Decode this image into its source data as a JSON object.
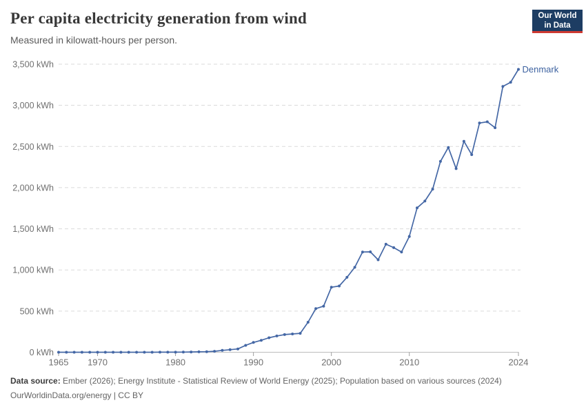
{
  "header": {
    "title": "Per capita electricity generation from wind",
    "subtitle": "Measured in kilowatt-hours per person.",
    "logo": {
      "line1": "Our World",
      "line2": "in Data"
    }
  },
  "colors": {
    "series_line": "#4467a5",
    "series_label": "#3d62a0",
    "logo_bg": "#1d3d63",
    "logo_bar": "#cf3a31",
    "gridline": "#dadada",
    "axis_line": "#bcbcbc",
    "tick_mark": "#9e9e9e",
    "tick_label": "#6f6f6f"
  },
  "chart_data": {
    "type": "line",
    "title": "Per capita electricity generation from wind",
    "subtitle": "Measured in kilowatt-hours per person.",
    "xlabel": "",
    "ylabel": "kilowatt-hours per person",
    "xlim": [
      1965,
      2024
    ],
    "ylim": [
      0,
      3500
    ],
    "grid": "horizontal-dashed",
    "legend_position": "end-of-line-label",
    "x_ticks": [
      {
        "value": 1965,
        "label": "1965"
      },
      {
        "value": 1970,
        "label": "1970"
      },
      {
        "value": 1980,
        "label": "1980"
      },
      {
        "value": 1990,
        "label": "1990"
      },
      {
        "value": 2000,
        "label": "2000"
      },
      {
        "value": 2010,
        "label": "2010"
      },
      {
        "value": 2024,
        "label": "2024"
      }
    ],
    "y_ticks": [
      {
        "value": 0,
        "label": "0 kWh"
      },
      {
        "value": 500,
        "label": "500 kWh"
      },
      {
        "value": 1000,
        "label": "1,000 kWh"
      },
      {
        "value": 1500,
        "label": "1,500 kWh"
      },
      {
        "value": 2000,
        "label": "2,000 kWh"
      },
      {
        "value": 2500,
        "label": "2,500 kWh"
      },
      {
        "value": 3000,
        "label": "3,000 kWh"
      },
      {
        "value": 3500,
        "label": "3,500 kWh"
      }
    ],
    "series": [
      {
        "name": "Denmark",
        "points": [
          [
            1965,
            0
          ],
          [
            1966,
            0
          ],
          [
            1967,
            0
          ],
          [
            1968,
            0
          ],
          [
            1969,
            0
          ],
          [
            1970,
            0
          ],
          [
            1971,
            0
          ],
          [
            1972,
            0
          ],
          [
            1973,
            0
          ],
          [
            1974,
            0
          ],
          [
            1975,
            0
          ],
          [
            1976,
            0
          ],
          [
            1977,
            0
          ],
          [
            1978,
            1
          ],
          [
            1979,
            1
          ],
          [
            1980,
            1
          ],
          [
            1981,
            2
          ],
          [
            1982,
            3
          ],
          [
            1983,
            5
          ],
          [
            1984,
            7
          ],
          [
            1985,
            12
          ],
          [
            1986,
            23
          ],
          [
            1987,
            31
          ],
          [
            1988,
            40
          ],
          [
            1989,
            84
          ],
          [
            1990,
            119
          ],
          [
            1991,
            145
          ],
          [
            1992,
            176
          ],
          [
            1993,
            198
          ],
          [
            1994,
            215
          ],
          [
            1995,
            222
          ],
          [
            1996,
            230
          ],
          [
            1997,
            365
          ],
          [
            1998,
            530
          ],
          [
            1999,
            560
          ],
          [
            2000,
            790
          ],
          [
            2001,
            805
          ],
          [
            2002,
            910
          ],
          [
            2003,
            1032
          ],
          [
            2004,
            1218
          ],
          [
            2005,
            1220
          ],
          [
            2006,
            1123
          ],
          [
            2007,
            1313
          ],
          [
            2008,
            1271
          ],
          [
            2009,
            1217
          ],
          [
            2010,
            1407
          ],
          [
            2011,
            1754
          ],
          [
            2012,
            1837
          ],
          [
            2013,
            1982
          ],
          [
            2014,
            2319
          ],
          [
            2015,
            2488
          ],
          [
            2016,
            2231
          ],
          [
            2017,
            2564
          ],
          [
            2018,
            2401
          ],
          [
            2019,
            2785
          ],
          [
            2020,
            2800
          ],
          [
            2021,
            2728
          ],
          [
            2022,
            3230
          ],
          [
            2023,
            3280
          ],
          [
            2024,
            3437
          ]
        ]
      }
    ]
  },
  "footer": {
    "source_label": "Data source:",
    "source_text": " Ember (2026); Energy Institute - Statistical Review of World Energy (2025); Population based on various sources (2024)",
    "license_text": "OurWorldinData.org/energy | CC BY"
  }
}
